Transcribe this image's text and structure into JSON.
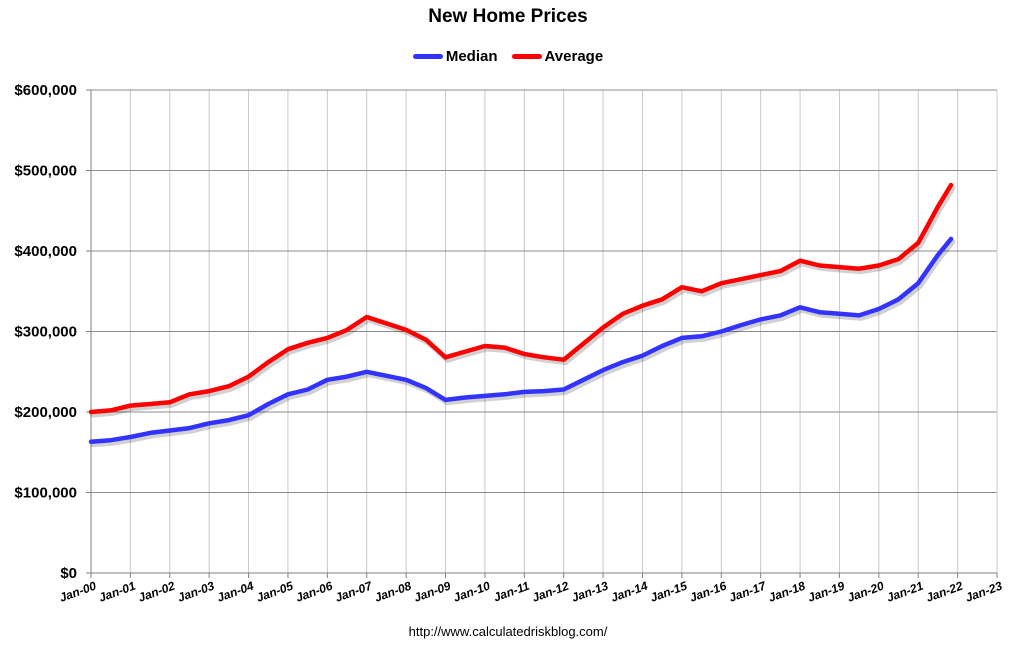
{
  "chart_data": {
    "type": "line",
    "title": "New Home Prices",
    "legend_position": "top",
    "grid": true,
    "xlabel": "",
    "ylabel": "",
    "xlim": [
      "2000-01",
      "2023-01"
    ],
    "ylim": [
      0,
      600000
    ],
    "y_ticks": [
      "$0",
      "$100,000",
      "$200,000",
      "$300,000",
      "$400,000",
      "$500,000",
      "$600,000"
    ],
    "x_ticks": [
      "Jan-00",
      "Jan-01",
      "Jan-02",
      "Jan-03",
      "Jan-04",
      "Jan-05",
      "Jan-06",
      "Jan-07",
      "Jan-08",
      "Jan-09",
      "Jan-10",
      "Jan-11",
      "Jan-12",
      "Jan-13",
      "Jan-14",
      "Jan-15",
      "Jan-16",
      "Jan-17",
      "Jan-18",
      "Jan-19",
      "Jan-20",
      "Jan-21",
      "Jan-22",
      "Jan-23"
    ],
    "x": [
      "2000-01",
      "2000-07",
      "2001-01",
      "2001-07",
      "2002-01",
      "2002-07",
      "2003-01",
      "2003-07",
      "2004-01",
      "2004-07",
      "2005-01",
      "2005-07",
      "2006-01",
      "2006-07",
      "2007-01",
      "2007-07",
      "2008-01",
      "2008-07",
      "2009-01",
      "2009-07",
      "2010-01",
      "2010-07",
      "2011-01",
      "2011-07",
      "2012-01",
      "2012-07",
      "2013-01",
      "2013-07",
      "2014-01",
      "2014-07",
      "2015-01",
      "2015-07",
      "2016-01",
      "2016-07",
      "2017-01",
      "2017-07",
      "2018-01",
      "2018-07",
      "2019-01",
      "2019-07",
      "2020-01",
      "2020-07",
      "2021-01",
      "2021-07",
      "2021-11"
    ],
    "series": [
      {
        "name": "Median",
        "color": "#3333ff",
        "values": [
          163000,
          165000,
          169000,
          174000,
          177000,
          180000,
          186000,
          190000,
          196000,
          210000,
          222000,
          228000,
          240000,
          244000,
          250000,
          245000,
          240000,
          230000,
          215000,
          218000,
          220000,
          222000,
          225000,
          226000,
          228000,
          240000,
          252000,
          262000,
          270000,
          282000,
          292000,
          294000,
          300000,
          308000,
          315000,
          320000,
          330000,
          324000,
          322000,
          320000,
          328000,
          340000,
          360000,
          395000,
          415000
        ]
      },
      {
        "name": "Average",
        "color": "#ff0000",
        "values": [
          200000,
          202000,
          208000,
          210000,
          212000,
          222000,
          226000,
          232000,
          244000,
          262000,
          278000,
          286000,
          292000,
          302000,
          318000,
          310000,
          302000,
          290000,
          268000,
          275000,
          282000,
          280000,
          272000,
          268000,
          265000,
          285000,
          305000,
          322000,
          332000,
          340000,
          355000,
          350000,
          360000,
          365000,
          370000,
          375000,
          388000,
          382000,
          380000,
          378000,
          382000,
          390000,
          410000,
          455000,
          482000
        ]
      }
    ]
  },
  "footer": "http://www.calculatedriskblog.com/"
}
